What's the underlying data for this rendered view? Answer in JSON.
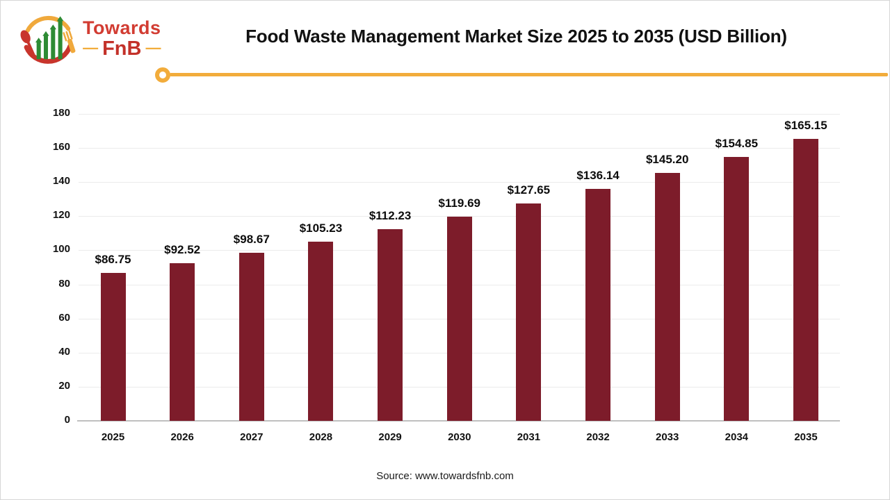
{
  "header": {
    "logo": {
      "brand_top": "Towards",
      "brand_bottom": "FnB",
      "dash": "—"
    },
    "title": "Food Waste Management Market Size 2025 to 2035 (USD Billion)"
  },
  "chart_data": {
    "type": "bar",
    "title": "Food Waste Management Market Size 2025 to 2035 (USD Billion)",
    "categories": [
      "2025",
      "2026",
      "2027",
      "2028",
      "2029",
      "2030",
      "2031",
      "2032",
      "2033",
      "2034",
      "2035"
    ],
    "values": [
      86.75,
      92.52,
      98.67,
      105.23,
      112.23,
      119.69,
      127.65,
      136.14,
      145.2,
      154.85,
      165.15
    ],
    "value_labels": [
      "$86.75",
      "$92.52",
      "$98.67",
      "$105.23",
      "$112.23",
      "$119.69",
      "$127.65",
      "$136.14",
      "$145.20",
      "$154.85",
      "$165.15"
    ],
    "unit": "USD Billion",
    "xlabel": "",
    "ylabel": "",
    "ylim": [
      0,
      180
    ],
    "yticks": [
      0,
      20,
      40,
      60,
      80,
      100,
      120,
      140,
      160,
      180
    ],
    "grid": true,
    "legend": false,
    "bar_color": "#7d1c2a"
  },
  "footer": {
    "source": "Source: www.towardsfnb.com"
  },
  "colors": {
    "bar": "#7d1c2a",
    "accent_line": "#f2ac3b",
    "logo_red": "#cd382f",
    "logo_green": "#2e8b34",
    "axis_line": "#bfbfbf",
    "gridline": "#ebebeb",
    "title_text": "#111111"
  }
}
